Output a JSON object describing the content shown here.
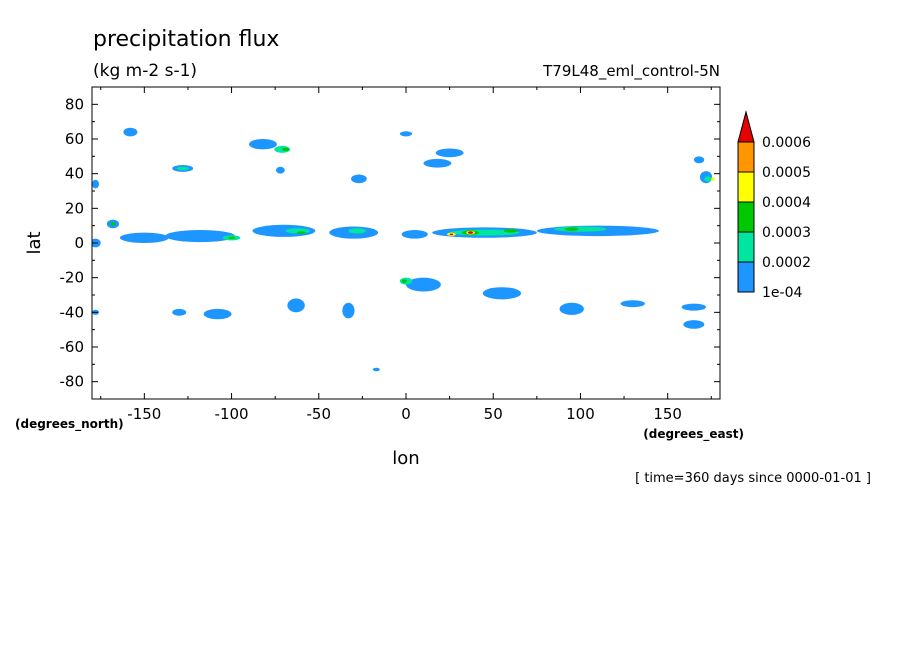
{
  "chart_data": {
    "type": "heatmap",
    "title": "precipitation flux",
    "units": "(kg m-2 s-1)",
    "run_name": "T79L48_eml_control-5N",
    "xlabel": "lon",
    "ylabel": "lat",
    "x_units_note": "(degrees_east)",
    "y_units_note": "(degrees_north)",
    "time_note": "[ time=360 days since 0000-01-01 ]",
    "xlim": [
      -180,
      180
    ],
    "ylim": [
      -90,
      90
    ],
    "x_ticks": [
      -150,
      -100,
      -50,
      0,
      50,
      100,
      150
    ],
    "x_tick_labels": [
      "-150",
      "-100",
      "-50",
      "0",
      "50",
      "100",
      "150"
    ],
    "y_ticks": [
      80,
      60,
      40,
      20,
      0,
      -20,
      -40,
      -60,
      -80
    ],
    "y_tick_labels": [
      "80",
      "60",
      "40",
      "20",
      "0",
      "-20",
      "-40",
      "-60",
      "-80"
    ],
    "colorbar": {
      "levels": [
        0.0001,
        0.0002,
        0.0003,
        0.0004,
        0.0005,
        0.0006
      ],
      "labels": [
        "1e-04",
        "0.0002",
        "0.0003",
        "0.0004",
        "0.0005",
        "0.0006"
      ],
      "colors": [
        "#1e96ff",
        "#00e6a0",
        "#00c800",
        "#ffff00",
        "#ff9600",
        "#e60000"
      ],
      "extend": "max"
    },
    "features": [
      {
        "lon": -178,
        "lat": 0,
        "w": 6,
        "h": 5,
        "level": 1
      },
      {
        "lon": -178,
        "lat": 34,
        "w": 4,
        "h": 5,
        "level": 1
      },
      {
        "lon": -168,
        "lat": 11,
        "w": 7,
        "h": 5,
        "level": 1
      },
      {
        "lon": -168,
        "lat": 11,
        "w": 3,
        "h": 2,
        "level": 3
      },
      {
        "lon": -158,
        "lat": 64,
        "w": 8,
        "h": 5,
        "level": 1
      },
      {
        "lon": -150,
        "lat": 3,
        "w": 28,
        "h": 6,
        "level": 1
      },
      {
        "lon": -128,
        "lat": 43,
        "w": 12,
        "h": 4,
        "level": 1
      },
      {
        "lon": -128,
        "lat": 43,
        "w": 7,
        "h": 2,
        "level": 2
      },
      {
        "lon": -118,
        "lat": 4,
        "w": 40,
        "h": 7,
        "level": 1
      },
      {
        "lon": -100,
        "lat": 3,
        "w": 10,
        "h": 3,
        "level": 2
      },
      {
        "lon": -100,
        "lat": 3,
        "w": 4,
        "h": 1.5,
        "level": 3
      },
      {
        "lon": -82,
        "lat": 57,
        "w": 16,
        "h": 6,
        "level": 1
      },
      {
        "lon": -71,
        "lat": 54,
        "w": 9,
        "h": 4,
        "level": 2
      },
      {
        "lon": -69,
        "lat": 54,
        "w": 4,
        "h": 2,
        "level": 3
      },
      {
        "lon": -72,
        "lat": 42,
        "w": 5,
        "h": 4,
        "level": 1
      },
      {
        "lon": -70,
        "lat": 7,
        "w": 36,
        "h": 7,
        "level": 1
      },
      {
        "lon": -62,
        "lat": 7,
        "w": 14,
        "h": 3,
        "level": 2
      },
      {
        "lon": -60,
        "lat": 6,
        "w": 5,
        "h": 1.5,
        "level": 3
      },
      {
        "lon": -30,
        "lat": 6,
        "w": 28,
        "h": 7,
        "level": 1
      },
      {
        "lon": -28,
        "lat": 7,
        "w": 10,
        "h": 3,
        "level": 2
      },
      {
        "lon": -27,
        "lat": 37,
        "w": 9,
        "h": 5,
        "level": 1
      },
      {
        "lon": 0,
        "lat": 63,
        "w": 7,
        "h": 3,
        "level": 1
      },
      {
        "lon": 25,
        "lat": 52,
        "w": 16,
        "h": 5,
        "level": 1
      },
      {
        "lon": 18,
        "lat": 46,
        "w": 16,
        "h": 5,
        "level": 1
      },
      {
        "lon": 5,
        "lat": 5,
        "w": 15,
        "h": 5,
        "level": 1
      },
      {
        "lon": 45,
        "lat": 6,
        "w": 60,
        "h": 6,
        "level": 1
      },
      {
        "lon": 45,
        "lat": 6,
        "w": 40,
        "h": 3.5,
        "level": 2
      },
      {
        "lon": 37,
        "lat": 6,
        "w": 10,
        "h": 2.5,
        "level": 3
      },
      {
        "lon": 37,
        "lat": 6,
        "w": 5,
        "h": 2,
        "level": 4
      },
      {
        "lon": 37,
        "lat": 6,
        "w": 3,
        "h": 1.5,
        "level": 6
      },
      {
        "lon": 26,
        "lat": 5,
        "w": 5,
        "h": 2,
        "level": 4
      },
      {
        "lon": 26,
        "lat": 5,
        "w": 2,
        "h": 1,
        "level": 6
      },
      {
        "lon": 110,
        "lat": 7,
        "w": 70,
        "h": 6,
        "level": 1
      },
      {
        "lon": 100,
        "lat": 8,
        "w": 30,
        "h": 3,
        "level": 2
      },
      {
        "lon": 95,
        "lat": 8,
        "w": 8,
        "h": 2,
        "level": 3
      },
      {
        "lon": 60,
        "lat": 7,
        "w": 8,
        "h": 2,
        "level": 3
      },
      {
        "lon": 172,
        "lat": 38,
        "w": 7,
        "h": 7,
        "level": 1
      },
      {
        "lon": 173,
        "lat": 37,
        "w": 4,
        "h": 3,
        "level": 2
      },
      {
        "lon": 176,
        "lat": 37,
        "w": 2,
        "h": 2,
        "level": 4
      },
      {
        "lon": 168,
        "lat": 48,
        "w": 6,
        "h": 4,
        "level": 1
      },
      {
        "lon": 10,
        "lat": -24,
        "w": 20,
        "h": 8,
        "level": 1
      },
      {
        "lon": 0,
        "lat": -22,
        "w": 7,
        "h": 4,
        "level": 2
      },
      {
        "lon": -1,
        "lat": -22,
        "w": 3,
        "h": 2,
        "level": 3
      },
      {
        "lon": 55,
        "lat": -29,
        "w": 22,
        "h": 7,
        "level": 1
      },
      {
        "lon": -130,
        "lat": -40,
        "w": 8,
        "h": 4,
        "level": 1
      },
      {
        "lon": -108,
        "lat": -41,
        "w": 16,
        "h": 6,
        "level": 1
      },
      {
        "lon": -63,
        "lat": -36,
        "w": 10,
        "h": 8,
        "level": 1
      },
      {
        "lon": -33,
        "lat": -39,
        "w": 7,
        "h": 9,
        "level": 1
      },
      {
        "lon": 95,
        "lat": -38,
        "w": 14,
        "h": 7,
        "level": 1
      },
      {
        "lon": 130,
        "lat": -35,
        "w": 14,
        "h": 4,
        "level": 1
      },
      {
        "lon": 165,
        "lat": -37,
        "w": 14,
        "h": 4,
        "level": 1
      },
      {
        "lon": 165,
        "lat": -47,
        "w": 12,
        "h": 5,
        "level": 1
      },
      {
        "lon": -178,
        "lat": -40,
        "w": 4,
        "h": 3,
        "level": 1
      },
      {
        "lon": -17,
        "lat": -73,
        "w": 4,
        "h": 2,
        "level": 1
      }
    ]
  }
}
